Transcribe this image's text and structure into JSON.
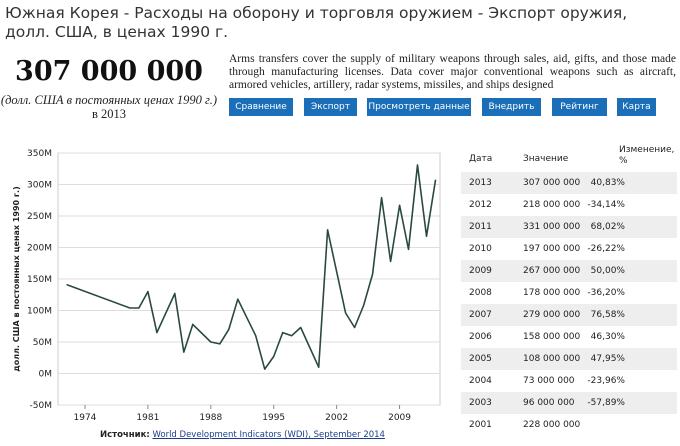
{
  "page": {
    "title": "Южная Корея - Расходы на оборону и торговля оружием - Экспорт оружия, долл. США, в ценах 1990 г.",
    "big_value": "307 000 000",
    "unit": "(долл. США в постоянных ценах 1990 г.)",
    "year_label": "в 2013",
    "description": "Arms transfers cover the supply of military weapons through sales, aid, gifts, and those made through manufacturing licenses. Data cover major conventional weapons such as aircraft, armored vehicles, artillery, radar systems, missiles, and ships designed"
  },
  "buttons": [
    "Сравнение",
    "Экспорт",
    "Просмотреть данные",
    "Внедрить",
    "Рейтинг",
    "Карта"
  ],
  "colors": {
    "button": "#1b6fb8",
    "line": "#2b4a3b",
    "table_shade": "#eeeeee"
  },
  "chart_data": {
    "type": "line",
    "ylabel": "долл. США в постоянных ценах 1990 г.)",
    "ylim": [
      -50,
      350
    ],
    "yticks": [
      "-50M",
      "0M",
      "50M",
      "100M",
      "150M",
      "200M",
      "250M",
      "300M",
      "350M"
    ],
    "xticks": [
      "1974",
      "1981",
      "1988",
      "1995",
      "2002",
      "2009"
    ],
    "grid": "horizontal",
    "x": [
      1972,
      1979,
      1980,
      1981,
      1982,
      1984,
      1985,
      1986,
      1988,
      1989,
      1990,
      1991,
      1993,
      1994,
      1995,
      1996,
      1997,
      1998,
      2000,
      2001,
      2003,
      2004,
      2005,
      2006,
      2007,
      2008,
      2009,
      2010,
      2011,
      2012,
      2013
    ],
    "y": [
      141,
      104,
      104,
      130,
      65,
      127,
      34,
      78,
      50,
      47,
      70,
      118,
      60,
      7,
      27,
      65,
      60,
      73,
      10,
      228,
      96,
      73,
      108,
      158,
      279,
      178,
      267,
      197,
      331,
      218,
      307
    ]
  },
  "table": {
    "headers": [
      "Дата",
      "Значение",
      "Изменение, %"
    ],
    "rows": [
      [
        "2013",
        "307 000 000",
        "40,83%"
      ],
      [
        "2012",
        "218 000 000",
        "-34,14%"
      ],
      [
        "2011",
        "331 000 000",
        "68,02%"
      ],
      [
        "2010",
        "197 000 000",
        "-26,22%"
      ],
      [
        "2009",
        "267 000 000",
        "50,00%"
      ],
      [
        "2008",
        "178 000 000",
        "-36,20%"
      ],
      [
        "2007",
        "279 000 000",
        "76,58%"
      ],
      [
        "2006",
        "158 000 000",
        "46,30%"
      ],
      [
        "2005",
        "108 000 000",
        "47,95%"
      ],
      [
        "2004",
        "73 000 000",
        "-23,96%"
      ],
      [
        "2003",
        "96 000 000",
        "-57,89%"
      ],
      [
        "2001",
        "228 000 000",
        ""
      ]
    ]
  },
  "source": {
    "prefix": "Источник:",
    "link": "World Development Indicators (WDI), September 2014"
  }
}
